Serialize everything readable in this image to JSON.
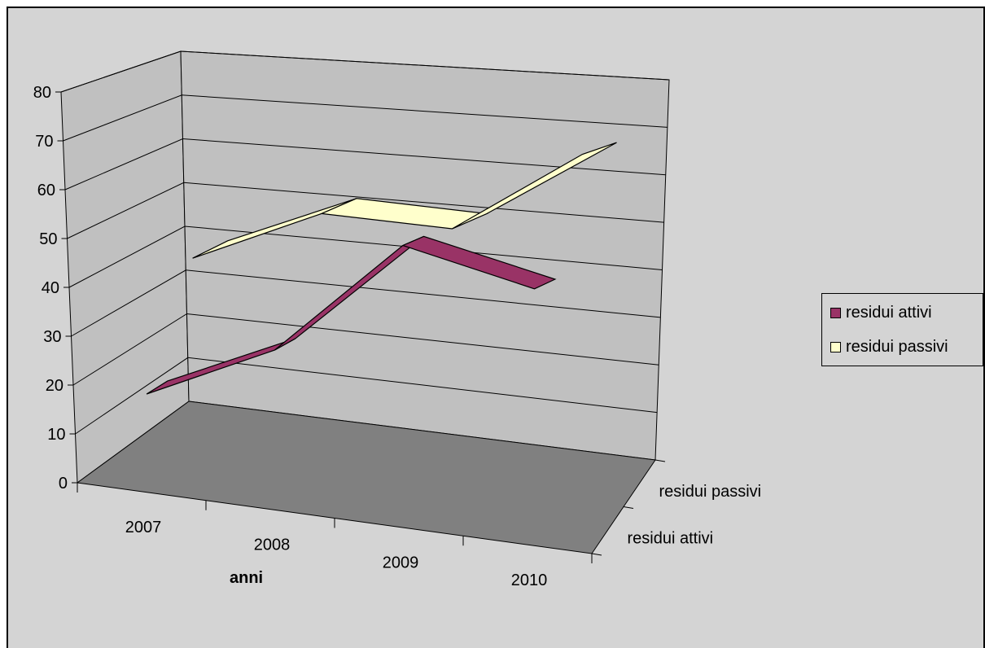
{
  "chart_data": {
    "type": "line",
    "style": "3d-ribbon",
    "categories": [
      "2007",
      "2008",
      "2009",
      "2010"
    ],
    "series": [
      {
        "name": "residui attivi",
        "values": [
          19,
          32,
          58,
          53
        ],
        "color": "#993366"
      },
      {
        "name": "residui passivi",
        "values": [
          42,
          56,
          57,
          78
        ],
        "color": "#ffffcc"
      }
    ],
    "depth_labels": [
      "residui attivi",
      "residui passivi"
    ],
    "xlabel": "anni",
    "ylabel": "",
    "ylim": [
      0,
      80
    ],
    "yticks": [
      "0",
      "10",
      "20",
      "30",
      "40",
      "50",
      "60",
      "70",
      "80"
    ],
    "grid": true,
    "legend_position": "right",
    "colors": {
      "chart_background": "#d4d4d4",
      "walls": "#c0c0c0",
      "floor": "#808080"
    }
  }
}
